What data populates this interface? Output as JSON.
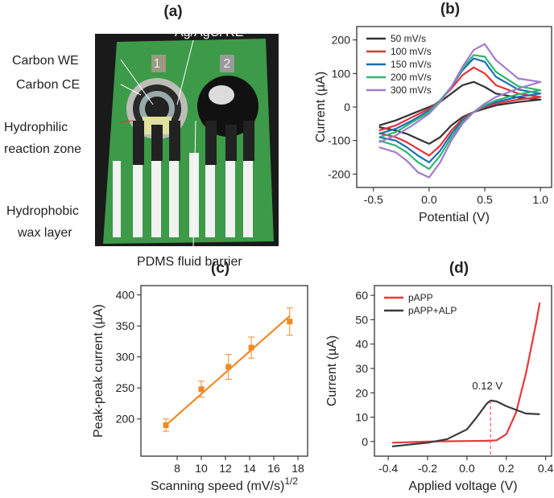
{
  "photo": {
    "panel_label": "(a)",
    "labels": [
      "Carbon WE",
      "Carbon CE",
      "Hydrophilic",
      "reaction zone",
      "Hydrophobic",
      "wax layer",
      "Ag/AgCl RE",
      "PDMS fluid barrier"
    ],
    "pad_numbers": [
      "1",
      "2"
    ]
  },
  "chart_data": [
    {
      "type": "line",
      "panel_label": "(b)",
      "xlabel": "Potential (V)",
      "ylabel": "Current (µA)",
      "xlim": [
        -0.65,
        1.1
      ],
      "xticks": [
        -0.5,
        {
          "value": 0,
          "label": "0.0"
        },
        0.5,
        {
          "value": 1,
          "label": "1.0"
        }
      ],
      "ylim": [
        -240,
        240
      ],
      "yticks": [
        -200,
        -100,
        0,
        100,
        200
      ],
      "legend": "upper-left",
      "x": [
        -0.45,
        -0.3,
        -0.15,
        0,
        0.1,
        0.2,
        0.3,
        0.4,
        0.5,
        0.6,
        0.8,
        1.0,
        0.8,
        0.6,
        0.5,
        0.4,
        0.3,
        0.2,
        0.1,
        0.0,
        -0.1,
        -0.2,
        -0.3,
        -0.45
      ],
      "series": [
        {
          "name": "50 mV/s",
          "color": "#333333",
          "values": [
            -55,
            -40,
            -20,
            0,
            15,
            40,
            65,
            75,
            60,
            40,
            28,
            22,
            15,
            5,
            -5,
            -15,
            -30,
            -55,
            -90,
            -110,
            -95,
            -80,
            -70,
            -60
          ]
        },
        {
          "name": "100 mV/s",
          "color": "#e8303a",
          "values": [
            -70,
            -55,
            -30,
            -5,
            20,
            55,
            95,
            118,
            100,
            65,
            40,
            30,
            22,
            10,
            0,
            -15,
            -35,
            -70,
            -115,
            -145,
            -125,
            -105,
            -90,
            -78
          ]
        },
        {
          "name": "150 mV/s",
          "color": "#1f6fb5",
          "values": [
            -80,
            -65,
            -40,
            -10,
            20,
            60,
            110,
            145,
            135,
            90,
            52,
            40,
            30,
            15,
            3,
            -15,
            -40,
            -80,
            -130,
            -165,
            -145,
            -120,
            -100,
            -90
          ]
        },
        {
          "name": "200 mV/s",
          "color": "#2bb673",
          "values": [
            -90,
            -75,
            -45,
            -15,
            20,
            60,
            115,
            155,
            150,
            105,
            62,
            50,
            38,
            20,
            5,
            -15,
            -45,
            -90,
            -145,
            -185,
            -165,
            -135,
            -115,
            -100
          ]
        },
        {
          "name": "300 mV/s",
          "color": "#a07bd0",
          "values": [
            -105,
            -85,
            -55,
            -20,
            15,
            60,
            120,
            170,
            188,
            140,
            85,
            75,
            55,
            30,
            10,
            -15,
            -50,
            -100,
            -165,
            -210,
            -195,
            -160,
            -135,
            -120
          ]
        }
      ]
    },
    {
      "type": "scatter",
      "panel_label": "(c)",
      "xlabel": "Scanning speed (mV/s)",
      "xlabel_superscript": "1/2",
      "ylabel": "Peak-peak current (µA)",
      "xlim": [
        5,
        18.8
      ],
      "xticks": [
        8,
        10,
        12,
        14,
        16,
        18
      ],
      "ylim": [
        140,
        415
      ],
      "yticks": [
        200,
        250,
        300,
        350,
        400
      ],
      "color": "#f08a24",
      "x": [
        7.07,
        10,
        12.25,
        14.14,
        17.32
      ],
      "values": [
        190,
        248,
        284,
        315,
        357
      ],
      "errors": [
        10,
        13,
        20,
        17,
        22
      ],
      "fit": {
        "x": [
          7.07,
          17.32
        ],
        "values": [
          190,
          366
        ]
      }
    },
    {
      "type": "line",
      "panel_label": "(d)",
      "xlabel": "Applied voltage (V)",
      "ylabel": "Current (µA)",
      "xlim": [
        -0.47,
        0.43
      ],
      "xticks": [
        -0.4,
        -0.2,
        {
          "value": 0,
          "label": "0.0"
        },
        0.2,
        0.4
      ],
      "ylim": [
        -6,
        64
      ],
      "yticks": [
        0,
        10,
        20,
        30,
        40,
        50,
        60
      ],
      "legend": "upper-left",
      "series": [
        {
          "name": "pAPP",
          "color": "#e8383d",
          "x": [
            -0.38,
            -0.3,
            -0.2,
            -0.1,
            0,
            0.1,
            0.15,
            0.2,
            0.25,
            0.3,
            0.35,
            0.37
          ],
          "values": [
            -0.5,
            -0.3,
            0,
            0.1,
            0.2,
            0.3,
            0.5,
            3,
            12,
            28,
            48,
            57
          ]
        },
        {
          "name": "pAPP+ALP",
          "color": "#3a3a3a",
          "x": [
            -0.38,
            -0.3,
            -0.2,
            -0.1,
            0,
            0.05,
            0.1,
            0.12,
            0.15,
            0.2,
            0.25,
            0.3,
            0.37
          ],
          "values": [
            -2,
            -1.3,
            -0.5,
            1,
            5,
            10,
            15.5,
            16.8,
            16.5,
            14.5,
            13,
            11.5,
            11.2
          ]
        }
      ],
      "annotation": {
        "text": "0.12 V",
        "x": 0.12,
        "y": 16.8
      }
    }
  ]
}
